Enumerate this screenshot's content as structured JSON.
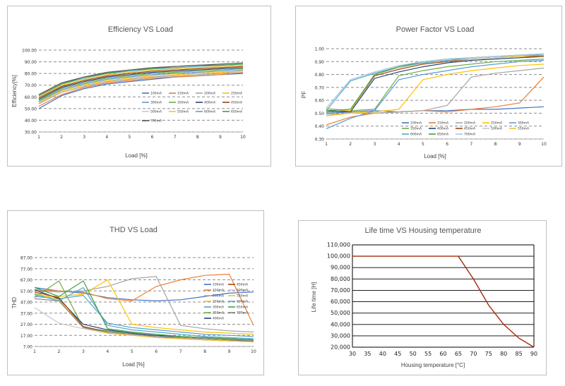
{
  "chart_data": [
    {
      "type": "line",
      "title": "Efficiency VS Load",
      "xlabel": "Load [%]",
      "ylabel": "Efficiency[%]",
      "x": [
        1,
        2,
        3,
        4,
        5,
        6,
        7,
        8,
        9,
        10
      ],
      "xlim": [
        1,
        10
      ],
      "ylim": [
        30,
        100
      ],
      "yticks": [
        "30.00",
        "40.00",
        "50.00",
        "60.00",
        "70.00",
        "80.00",
        "90.00",
        "100.00"
      ],
      "grid": "dashed horizontal",
      "series": [
        {
          "name": "100 mA",
          "color": "#4472c4",
          "values": [
            50,
            61,
            67,
            71,
            73,
            75,
            77,
            78,
            79,
            80
          ]
        },
        {
          "name": "150 mA",
          "color": "#ed7d31",
          "values": [
            52,
            62,
            68,
            72,
            74,
            76,
            77,
            78,
            79,
            81
          ]
        },
        {
          "name": "200 mA",
          "color": "#a5a5a5",
          "values": [
            54,
            64,
            69,
            73,
            75,
            77,
            78,
            79,
            80,
            82
          ]
        },
        {
          "name": "250 mA",
          "color": "#ffc000",
          "values": [
            55,
            65,
            70,
            74,
            76,
            78,
            79,
            80,
            81,
            82
          ]
        },
        {
          "name": "300 mA",
          "color": "#5b9bd5",
          "values": [
            56,
            66,
            71,
            75,
            77,
            79,
            80,
            81,
            82,
            83
          ]
        },
        {
          "name": "350 mA",
          "color": "#70ad47",
          "values": [
            57,
            67,
            72,
            76,
            78,
            80,
            81,
            82,
            83,
            84
          ]
        },
        {
          "name": "400 mA",
          "color": "#264478",
          "values": [
            58,
            68,
            73,
            77,
            79,
            81,
            82,
            83,
            84,
            85
          ]
        },
        {
          "name": "450 mA",
          "color": "#9e480e",
          "values": [
            59,
            69,
            74,
            78,
            80,
            82,
            83,
            84,
            85,
            86
          ]
        },
        {
          "name": "500 mA",
          "color": "#c9c9c9",
          "values": [
            60,
            70,
            75,
            79,
            81,
            83,
            84,
            85,
            86,
            87
          ]
        },
        {
          "name": "550 mA",
          "color": "#f4c430",
          "values": [
            60,
            70,
            75,
            79,
            81,
            83,
            84,
            85,
            86,
            87
          ]
        },
        {
          "name": "600 mA",
          "color": "#4bacc6",
          "values": [
            61,
            71,
            76,
            80,
            82,
            84,
            85,
            86,
            87,
            88
          ]
        },
        {
          "name": "650 mA",
          "color": "#43a047",
          "values": [
            61,
            71,
            77,
            80,
            83,
            84,
            86,
            87,
            87,
            88
          ]
        },
        {
          "name": "700 mA",
          "color": "#555555",
          "values": [
            62,
            72,
            77,
            81,
            83,
            85,
            86,
            87,
            88,
            89
          ]
        }
      ]
    },
    {
      "type": "line",
      "title": "Power Factor VS Load",
      "xlabel": "Load [%]",
      "ylabel": "PF",
      "x": [
        1,
        2,
        3,
        4,
        5,
        6,
        7,
        8,
        9,
        10
      ],
      "xlim": [
        1,
        10
      ],
      "ylim": [
        0.3,
        1.0
      ],
      "yticks": [
        "0.30",
        "0.40",
        "0.50",
        "0.60",
        "0.70",
        "0.80",
        "0.90",
        "1.00"
      ],
      "grid": "dashed horizontal",
      "series": [
        {
          "name": "100 mA",
          "color": "#4472c4",
          "values": [
            0.5,
            0.51,
            0.52,
            0.51,
            0.52,
            0.52,
            0.53,
            0.53,
            0.54,
            0.55
          ]
        },
        {
          "name": "150 mA",
          "color": "#ed7d31",
          "values": [
            0.41,
            0.47,
            0.5,
            0.51,
            0.52,
            0.51,
            0.53,
            0.55,
            0.58,
            0.78
          ]
        },
        {
          "name": "200 mA",
          "color": "#a5a5a5",
          "values": [
            0.49,
            0.5,
            0.5,
            0.51,
            0.52,
            0.56,
            0.78,
            0.81,
            0.83,
            0.85
          ]
        },
        {
          "name": "250 mA",
          "color": "#ffc000",
          "values": [
            0.48,
            0.5,
            0.51,
            0.53,
            0.76,
            0.8,
            0.83,
            0.85,
            0.87,
            0.88
          ]
        },
        {
          "name": "300 mA",
          "color": "#5b9bd5",
          "values": [
            0.38,
            0.46,
            0.52,
            0.76,
            0.8,
            0.83,
            0.86,
            0.88,
            0.9,
            0.91
          ]
        },
        {
          "name": "350 mA",
          "color": "#70ad47",
          "values": [
            0.51,
            0.52,
            0.53,
            0.79,
            0.83,
            0.86,
            0.88,
            0.9,
            0.91,
            0.92
          ]
        },
        {
          "name": "400 mA",
          "color": "#264478",
          "values": [
            0.52,
            0.51,
            0.77,
            0.82,
            0.86,
            0.89,
            0.91,
            0.92,
            0.93,
            0.94
          ]
        },
        {
          "name": "450 mA",
          "color": "#9e480e",
          "values": [
            0.53,
            0.52,
            0.79,
            0.84,
            0.88,
            0.9,
            0.92,
            0.93,
            0.94,
            0.94
          ]
        },
        {
          "name": "500 mA",
          "color": "#c9c9c9",
          "values": [
            0.54,
            0.52,
            0.8,
            0.85,
            0.89,
            0.91,
            0.92,
            0.93,
            0.94,
            0.95
          ]
        },
        {
          "name": "550 mA",
          "color": "#f4c430",
          "values": [
            0.53,
            0.52,
            0.8,
            0.86,
            0.89,
            0.91,
            0.93,
            0.94,
            0.94,
            0.95
          ]
        },
        {
          "name": "600 mA",
          "color": "#4bacc6",
          "values": [
            0.52,
            0.75,
            0.81,
            0.86,
            0.89,
            0.91,
            0.93,
            0.94,
            0.95,
            0.95
          ]
        },
        {
          "name": "650 mA",
          "color": "#43a047",
          "values": [
            0.52,
            0.53,
            0.8,
            0.86,
            0.9,
            0.92,
            0.93,
            0.94,
            0.95,
            0.96
          ]
        },
        {
          "name": "700 mA",
          "color": "#a9c4e6",
          "values": [
            0.54,
            0.76,
            0.82,
            0.87,
            0.9,
            0.92,
            0.93,
            0.94,
            0.95,
            0.96
          ]
        }
      ]
    },
    {
      "type": "line",
      "title": "THD VS Load",
      "xlabel": "Load [%]",
      "ylabel": "THD",
      "x": [
        1,
        2,
        3,
        4,
        5,
        6,
        7,
        8,
        9,
        10
      ],
      "xlim": [
        1,
        10
      ],
      "ylim": [
        7,
        87
      ],
      "yticks": [
        "7.00",
        "17.00",
        "27.00",
        "37.00",
        "47.00",
        "57.00",
        "67.00",
        "77.00",
        "87.00"
      ],
      "grid": "dashed horizontal",
      "series": [
        {
          "name": "100 mA",
          "color": "#4472c4",
          "values": [
            60,
            57,
            55,
            51,
            49,
            48,
            49,
            52,
            55,
            56
          ]
        },
        {
          "name": "150 mA",
          "color": "#ed7d31",
          "values": [
            58,
            57,
            56,
            50,
            48,
            61,
            67,
            71,
            72,
            26
          ]
        },
        {
          "name": "200 mA",
          "color": "#a5a5a5",
          "values": [
            57,
            56,
            57,
            61,
            68,
            70,
            26,
            23,
            21,
            20
          ]
        },
        {
          "name": "250 mA",
          "color": "#ffc000",
          "values": [
            53,
            52,
            54,
            67,
            27,
            24,
            22,
            20,
            19,
            18
          ]
        },
        {
          "name": "300 mA",
          "color": "#5b9bd5",
          "values": [
            52,
            50,
            53,
            28,
            24,
            22,
            20,
            18,
            17,
            16
          ]
        },
        {
          "name": "350 mA",
          "color": "#70ad47",
          "values": [
            51,
            66,
            24,
            21,
            19,
            17,
            16,
            15,
            14,
            13
          ]
        },
        {
          "name": "400 mA",
          "color": "#264478",
          "values": [
            58,
            50,
            27,
            22,
            19,
            17,
            16,
            15,
            14,
            13
          ]
        },
        {
          "name": "450 mA",
          "color": "#9e480e",
          "values": [
            56,
            51,
            25,
            20,
            18,
            16,
            14,
            13,
            12,
            12
          ]
        },
        {
          "name": "500 mA",
          "color": "#c9c9c9",
          "values": [
            42,
            28,
            23,
            19,
            17,
            16,
            15,
            14,
            13,
            12
          ]
        },
        {
          "name": "550 mA",
          "color": "#f4c430",
          "values": [
            55,
            49,
            24,
            19,
            17,
            15,
            14,
            13,
            12,
            11
          ]
        },
        {
          "name": "600 mA",
          "color": "#4bacc6",
          "values": [
            54,
            48,
            60,
            26,
            22,
            20,
            18,
            16,
            15,
            14
          ]
        },
        {
          "name": "650 mA",
          "color": "#43a047",
          "values": [
            60,
            52,
            66,
            23,
            20,
            18,
            16,
            15,
            14,
            13
          ]
        },
        {
          "name": "700 mA",
          "color": "#7f7f7f",
          "values": [
            50,
            48,
            24,
            20,
            18,
            16,
            15,
            14,
            13,
            12
          ]
        }
      ]
    },
    {
      "type": "line",
      "title": "Life time VS Housing temperature",
      "xlabel": "Housing temperature [°C]",
      "ylabel": "Life time [H]",
      "x": [
        30,
        35,
        40,
        45,
        50,
        55,
        60,
        65,
        70,
        75,
        80,
        85,
        90
      ],
      "xlim": [
        30,
        90
      ],
      "ylim": [
        20000,
        110000
      ],
      "xticks": [
        "30",
        "35",
        "40",
        "45",
        "50",
        "55",
        "60",
        "65",
        "70",
        "75",
        "80",
        "85",
        "90"
      ],
      "yticks": [
        "20,000",
        "30,000",
        "40,000",
        "50,000",
        "60,000",
        "70,000",
        "80,000",
        "90,000",
        "100,000",
        "110,000"
      ],
      "grid": "solid horizontal",
      "series": [
        {
          "color": "#a52a0a",
          "values": [
            100000,
            100000,
            100000,
            100000,
            100000,
            100000,
            100000,
            100000,
            80000,
            57000,
            40000,
            28000,
            20000
          ]
        }
      ]
    }
  ],
  "legends": {
    "efficiency": [
      "100mA",
      "150mA",
      "200mA",
      "250mA",
      "300mA",
      "350mA",
      "400mA",
      "450mA",
      "500mA",
      "550mA",
      "600mA",
      "650mA",
      "700mA"
    ],
    "pf": [
      "100mA",
      "150mA",
      "200mA",
      "250mA",
      "300mA",
      "350mA",
      "400mA",
      "450mA",
      "500mA",
      "550mA",
      "600mA",
      "650mA",
      "700mA"
    ],
    "thd": [
      "100mA",
      "450mA",
      "150mA",
      "500mA",
      "200mA",
      "550mA",
      "250mA",
      "600mA",
      "300mA",
      "650mA",
      "350mA",
      "700mA",
      "400mA"
    ]
  }
}
